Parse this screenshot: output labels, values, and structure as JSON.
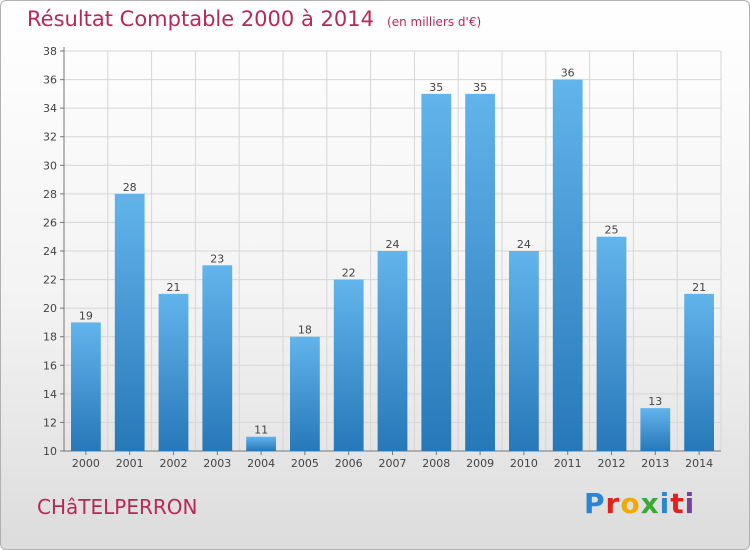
{
  "chart_data": {
    "type": "bar",
    "title": "Résultat Comptable 2000 à 2014",
    "unit_label": "(en milliers d'€)",
    "categories": [
      "2000",
      "2001",
      "2002",
      "2003",
      "2004",
      "2005",
      "2006",
      "2007",
      "2008",
      "2009",
      "2010",
      "2011",
      "2012",
      "2013",
      "2014"
    ],
    "values": [
      19,
      28,
      21,
      23,
      11,
      18,
      22,
      24,
      35,
      35,
      24,
      36,
      25,
      13,
      21
    ],
    "ylim": [
      10,
      38
    ],
    "yticks": [
      10,
      12,
      14,
      16,
      18,
      20,
      22,
      24,
      26,
      28,
      30,
      32,
      34,
      36,
      38
    ],
    "grid": true,
    "xlabel": "",
    "ylabel": ""
  },
  "footer": {
    "commune": "CHâTELPERRON",
    "logo_text": "Proxiti",
    "logo_colors": [
      "#2a86d4",
      "#e3201b",
      "#f2a900",
      "#3aa935",
      "#2a86d4",
      "#e3201b",
      "#7a3fa0"
    ]
  },
  "colors": {
    "bar_top": "#62b4ec",
    "bar_bottom": "#2778b8",
    "title": "#b5285a"
  }
}
